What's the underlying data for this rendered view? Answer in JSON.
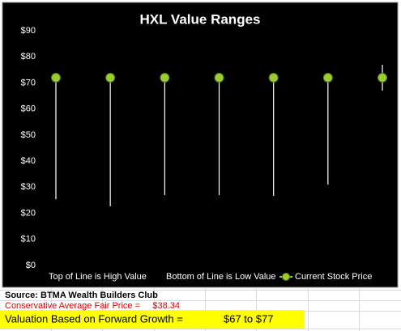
{
  "chart_data": {
    "type": "hilo",
    "title": "HXL Value Ranges",
    "categories": [
      null,
      null,
      null,
      null,
      null,
      null,
      null
    ],
    "series": [
      {
        "name": "Top of Line is High Value",
        "color": "#ffffff",
        "values": [
          72,
          72,
          72,
          72,
          72,
          72,
          77
        ]
      },
      {
        "name": "Bottom of Line is Low Value",
        "color": "#ffffff",
        "values": [
          25.4,
          22.7,
          27,
          27,
          26.7,
          31,
          67
        ]
      },
      {
        "name": "Current Stock Price",
        "color": "#9acd32",
        "values": [
          72,
          72,
          72,
          72,
          72,
          72,
          72
        ]
      }
    ],
    "ylim": [
      0,
      90
    ],
    "yticks": [
      {
        "value": 0,
        "label": "$0"
      },
      {
        "value": 10,
        "label": "$10"
      },
      {
        "value": 20,
        "label": "$20"
      },
      {
        "value": 30,
        "label": "$30"
      },
      {
        "value": 40,
        "label": "$40"
      },
      {
        "value": 50,
        "label": "$50"
      },
      {
        "value": 60,
        "label": "$60"
      },
      {
        "value": 70,
        "label": "$70"
      },
      {
        "value": 80,
        "label": "$80"
      },
      {
        "value": 90,
        "label": "$90"
      }
    ],
    "grid": false,
    "legend": "bottom"
  },
  "sheet": {
    "source": "Source: BTMA Wealth Builders Club",
    "fair_price_label": "Conservative Average Fair Price =",
    "fair_price": "$38.34",
    "valuation_label": "Valuation Based on Forward Growth =",
    "valuation": "$67 to $77"
  }
}
